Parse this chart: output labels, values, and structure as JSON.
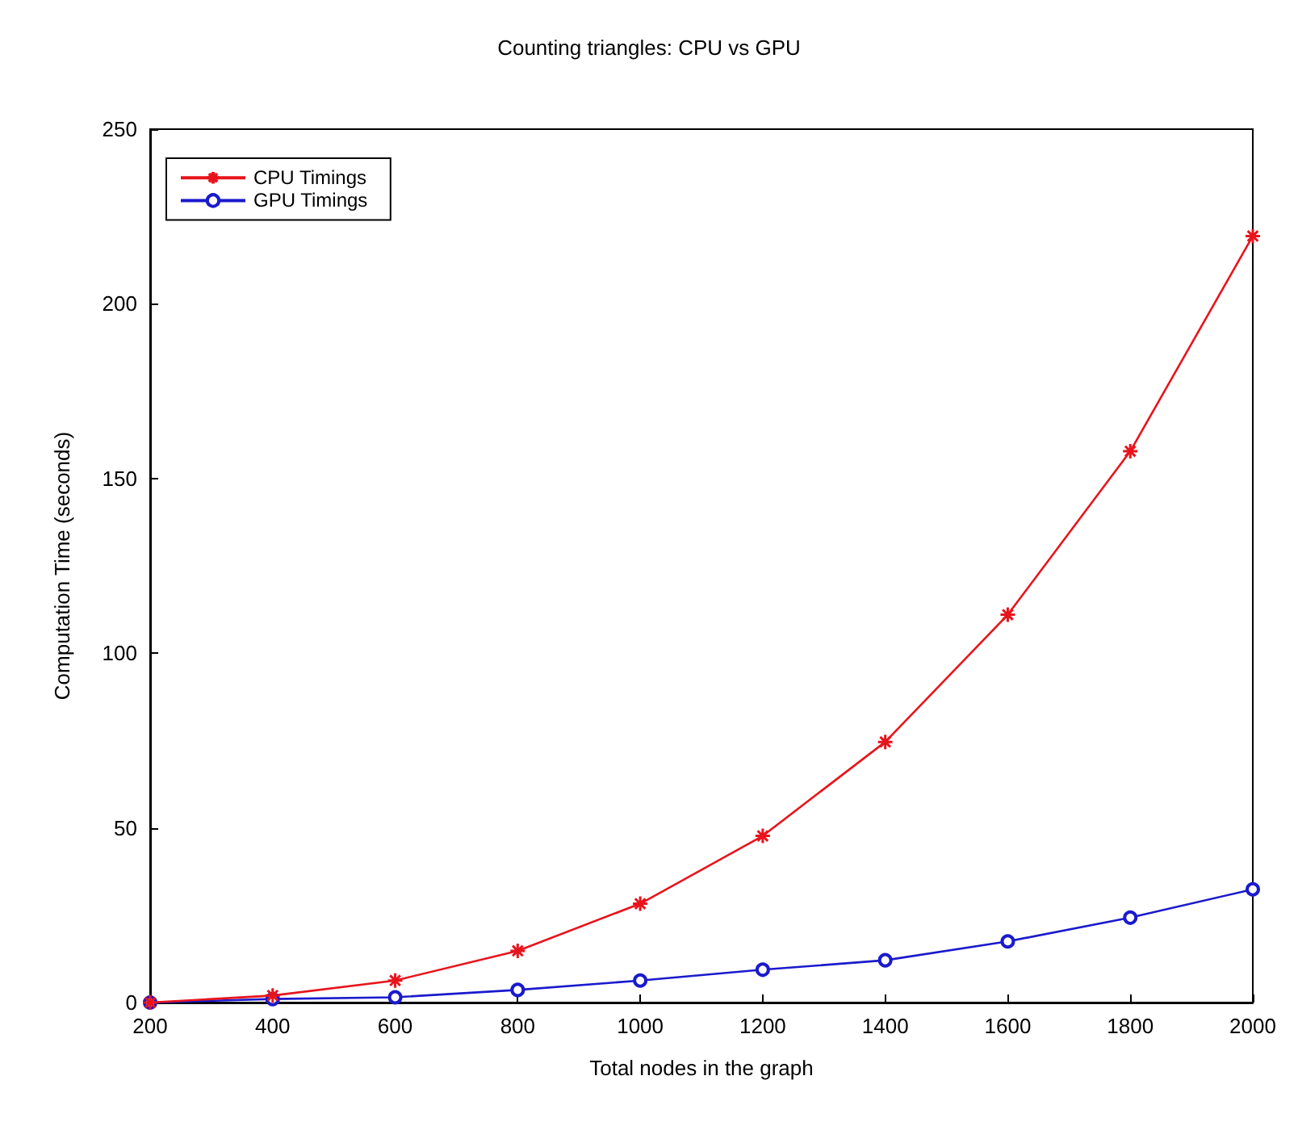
{
  "chart_data": {
    "type": "line",
    "title": "Counting triangles: CPU vs GPU",
    "xlabel": "Total nodes in the graph",
    "ylabel": "Computation Time (seconds)",
    "x": [
      200,
      400,
      600,
      800,
      1000,
      1200,
      1400,
      1600,
      1800,
      2000
    ],
    "series": [
      {
        "name": "CPU Timings",
        "color": "#e8141c",
        "marker": "cross",
        "values": [
          0,
          2,
          6.3,
          14.8,
          28.3,
          47.7,
          74.6,
          111,
          157.8,
          219.4
        ]
      },
      {
        "name": "GPU Timings",
        "color": "#1a1acc",
        "marker": "circle",
        "values": [
          0,
          1,
          1.5,
          3.6,
          6.3,
          9.4,
          12.1,
          17.5,
          24.3,
          32.4
        ]
      }
    ],
    "xlim": [
      200,
      2000
    ],
    "xticks": [
      200,
      400,
      600,
      800,
      1000,
      1200,
      1400,
      1600,
      1800,
      2000
    ],
    "ylim": [
      0,
      250
    ],
    "yticks": [
      0,
      50,
      100,
      150,
      200,
      250
    ],
    "grid": false,
    "legend": "top left",
    "line_style": "solid"
  }
}
